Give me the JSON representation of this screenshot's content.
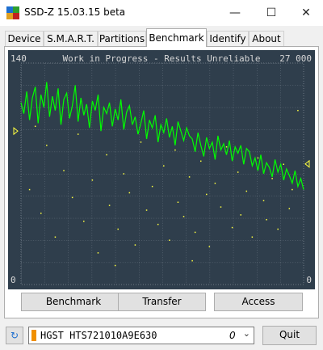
{
  "window": {
    "title": "SSD-Z 15.03.15 beta"
  },
  "tabs": [
    "Device",
    "S.M.A.R.T.",
    "Partitions",
    "Benchmark",
    "Identify",
    "About"
  ],
  "chart_data": {
    "type": "line",
    "title": "Work in Progress - Results Unreliable",
    "ylim": [
      0,
      140
    ],
    "yticks": [
      0,
      140
    ],
    "y2lim": [
      0,
      27000
    ],
    "y2ticks": [
      0,
      {
        "value": 27000,
        "label": "27 000"
      }
    ],
    "y_marker": 97,
    "y2_marker": 14700,
    "series": [
      {
        "color": "#00ff00",
        "values": [
          115,
          108,
          122,
          104,
          118,
          125,
          102,
          120,
          112,
          128,
          106,
          119,
          110,
          124,
          101,
          117,
          121,
          105,
          113,
          126,
          103,
          118,
          107,
          114,
          99,
          116,
          110,
          120,
          97,
          112,
          108,
          115,
          100,
          111,
          104,
          117,
          98,
          109,
          113,
          101,
          106,
          95,
          102,
          110,
          92,
          104,
          99,
          107,
          90,
          101,
          96,
          105,
          93,
          100,
          88,
          103,
          97,
          91,
          99,
          94,
          92,
          84,
          96,
          88,
          81,
          93,
          86,
          90,
          79,
          94,
          85,
          89,
          82,
          91,
          78,
          87,
          83,
          88,
          76,
          86,
          84,
          75,
          80,
          72,
          82,
          70,
          77,
          74,
          68,
          79,
          71,
          76,
          66,
          73,
          69,
          64,
          72,
          62,
          67,
          60
        ]
      },
      {
        "type": "scatter",
        "color": "#ffff40",
        "x": [
          3,
          7,
          9,
          12,
          15,
          18,
          20,
          22,
          25,
          27,
          30,
          31,
          34,
          36,
          38,
          40,
          42,
          44,
          46,
          48,
          50,
          52,
          54,
          55,
          57,
          59,
          61,
          63,
          65,
          66,
          68,
          70,
          72,
          74,
          76,
          77,
          79,
          81,
          83,
          85,
          86,
          88,
          90,
          92,
          94,
          95,
          97,
          5,
          33,
          60
        ],
        "values": [
          60,
          45,
          88,
          30,
          72,
          55,
          95,
          40,
          66,
          20,
          82,
          50,
          35,
          70,
          58,
          25,
          90,
          47,
          62,
          38,
          75,
          28,
          85,
          52,
          43,
          68,
          33,
          78,
          57,
          24,
          64,
          49,
          87,
          36,
          71,
          44,
          59,
          30,
          80,
          53,
          41,
          67,
          35,
          76,
          48,
          60,
          110,
          100,
          12,
          15
        ]
      }
    ]
  },
  "buttons": [
    "Benchmark",
    "Transfer",
    "Access"
  ],
  "drive": {
    "name": "HGST HTS721010A9E630",
    "index": 0
  },
  "quit": "Quit"
}
